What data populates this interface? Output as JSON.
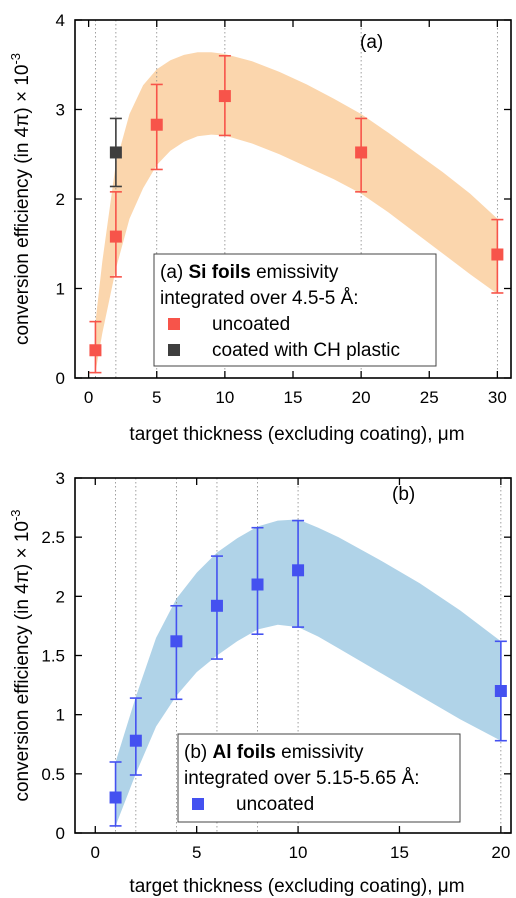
{
  "chart_data": [
    {
      "type": "scatter",
      "panel_label": "(a)",
      "xlabel": "target thickness (excluding coating), μm",
      "ylabel": "conversion efficiency (in 4π) × 10",
      "ylabel_exponent": "-3",
      "xlim": [
        -1,
        31
      ],
      "ylim": [
        0,
        4
      ],
      "x_ticks": [
        0,
        5,
        10,
        15,
        20,
        25,
        30
      ],
      "y_ticks": [
        0,
        1,
        2,
        3,
        4
      ],
      "grid": "vertical dotted lines at data x positions",
      "legend": {
        "placement": "lower-center",
        "title_prefix": "(a) ",
        "title_bold": "Si foils",
        "title_suffix": " emissivity",
        "subtitle": "integrated over 4.5-5 Å:"
      },
      "series": [
        {
          "name": "uncoated",
          "color": "#f7544a",
          "x": [
            0.5,
            2,
            5,
            10,
            20,
            30
          ],
          "y": [
            0.31,
            1.58,
            2.83,
            3.15,
            2.52,
            1.38
          ],
          "y_err_low": [
            0.25,
            0.45,
            0.5,
            0.44,
            0.44,
            0.43
          ],
          "y_err_high": [
            0.32,
            0.5,
            0.45,
            0.45,
            0.38,
            0.39
          ]
        },
        {
          "name": "coated with CH plastic",
          "color": "#3e3e3e",
          "x": [
            2
          ],
          "y": [
            2.52
          ],
          "y_err_low": [
            0.38
          ],
          "y_err_high": [
            0.38
          ]
        }
      ],
      "band": {
        "color": "#fbd6ad",
        "x": [
          0.5,
          1,
          2,
          3,
          4,
          5,
          6,
          7,
          8,
          9,
          10,
          12,
          14,
          16,
          18,
          20,
          22,
          24,
          26,
          28,
          30
        ],
        "upper": [
          0.62,
          1.3,
          2.4,
          2.95,
          3.27,
          3.45,
          3.55,
          3.61,
          3.64,
          3.64,
          3.62,
          3.54,
          3.42,
          3.28,
          3.12,
          2.95,
          2.74,
          2.52,
          2.3,
          2.06,
          1.78
        ],
        "lower": [
          0.06,
          0.5,
          1.22,
          1.78,
          2.12,
          2.38,
          2.54,
          2.64,
          2.7,
          2.72,
          2.71,
          2.62,
          2.5,
          2.36,
          2.22,
          2.06,
          1.85,
          1.62,
          1.39,
          1.16,
          0.94
        ]
      }
    },
    {
      "type": "scatter",
      "panel_label": "(b)",
      "xlabel": "target thickness (excluding coating), μm",
      "ylabel": "conversion efficiency (in 4π) × 10",
      "ylabel_exponent": "-3",
      "xlim": [
        -1,
        20.5
      ],
      "ylim": [
        0,
        3
      ],
      "x_ticks": [
        0,
        5,
        10,
        15,
        20
      ],
      "y_ticks": [
        0,
        0.5,
        1,
        1.5,
        2,
        2.5,
        3
      ],
      "grid": "vertical dotted lines at data x positions",
      "legend": {
        "placement": "lower-center",
        "title_prefix": "(b) ",
        "title_bold": "Al foils",
        "title_suffix": " emissivity",
        "subtitle": "integrated over 5.15-5.65 Å:"
      },
      "series": [
        {
          "name": "uncoated",
          "color": "#4451f0",
          "x": [
            1,
            2,
            4,
            6,
            8,
            10,
            20
          ],
          "y": [
            0.3,
            0.78,
            1.62,
            1.92,
            2.1,
            2.22,
            1.2
          ],
          "y_err_low": [
            0.24,
            0.29,
            0.49,
            0.45,
            0.42,
            0.48,
            0.42
          ],
          "y_err_high": [
            0.3,
            0.36,
            0.3,
            0.42,
            0.48,
            0.42,
            0.42
          ]
        }
      ],
      "band": {
        "color": "#b0d3e8",
        "x": [
          1,
          2,
          3,
          4,
          5,
          6,
          7,
          8,
          9,
          10,
          11,
          12,
          14,
          16,
          18,
          20
        ],
        "upper": [
          0.6,
          1.15,
          1.65,
          1.98,
          2.2,
          2.37,
          2.49,
          2.59,
          2.64,
          2.65,
          2.58,
          2.5,
          2.31,
          2.11,
          1.88,
          1.62
        ],
        "lower": [
          0.06,
          0.5,
          0.9,
          1.16,
          1.36,
          1.5,
          1.62,
          1.72,
          1.76,
          1.74,
          1.66,
          1.56,
          1.36,
          1.16,
          0.96,
          0.78
        ]
      }
    }
  ]
}
